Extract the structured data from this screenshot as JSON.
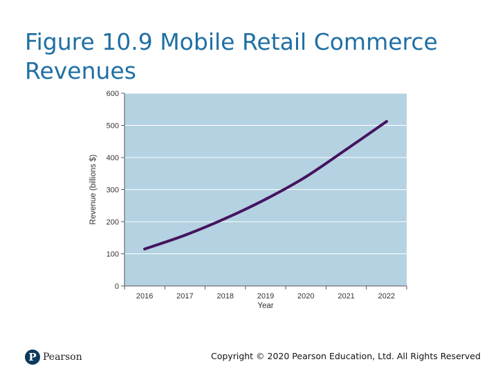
{
  "slide": {
    "title": "Figure 10.9 Mobile Retail Commerce Revenues",
    "copyright": "Copyright © 2020 Pearson Education, Ltd. All Rights Reserved",
    "logo_text": "Pearson"
  },
  "colors": {
    "title": "#1f6fa3",
    "plot_background": "#b4d2e1",
    "line": "#45135f",
    "logo": "#0d3a5c"
  },
  "chart_data": {
    "type": "line",
    "title": "",
    "xlabel": "Year",
    "ylabel": "Revenue (billions $)",
    "categories": [
      "2016",
      "2017",
      "2018",
      "2019",
      "2020",
      "2021",
      "2022"
    ],
    "series": [
      {
        "values": [
          115,
          158,
          210,
          270,
          340,
          425,
          512
        ]
      }
    ],
    "ylim": [
      0,
      600
    ],
    "yticks": [
      0,
      100,
      200,
      300,
      400,
      500,
      600
    ],
    "grid": true,
    "legend": "none"
  }
}
